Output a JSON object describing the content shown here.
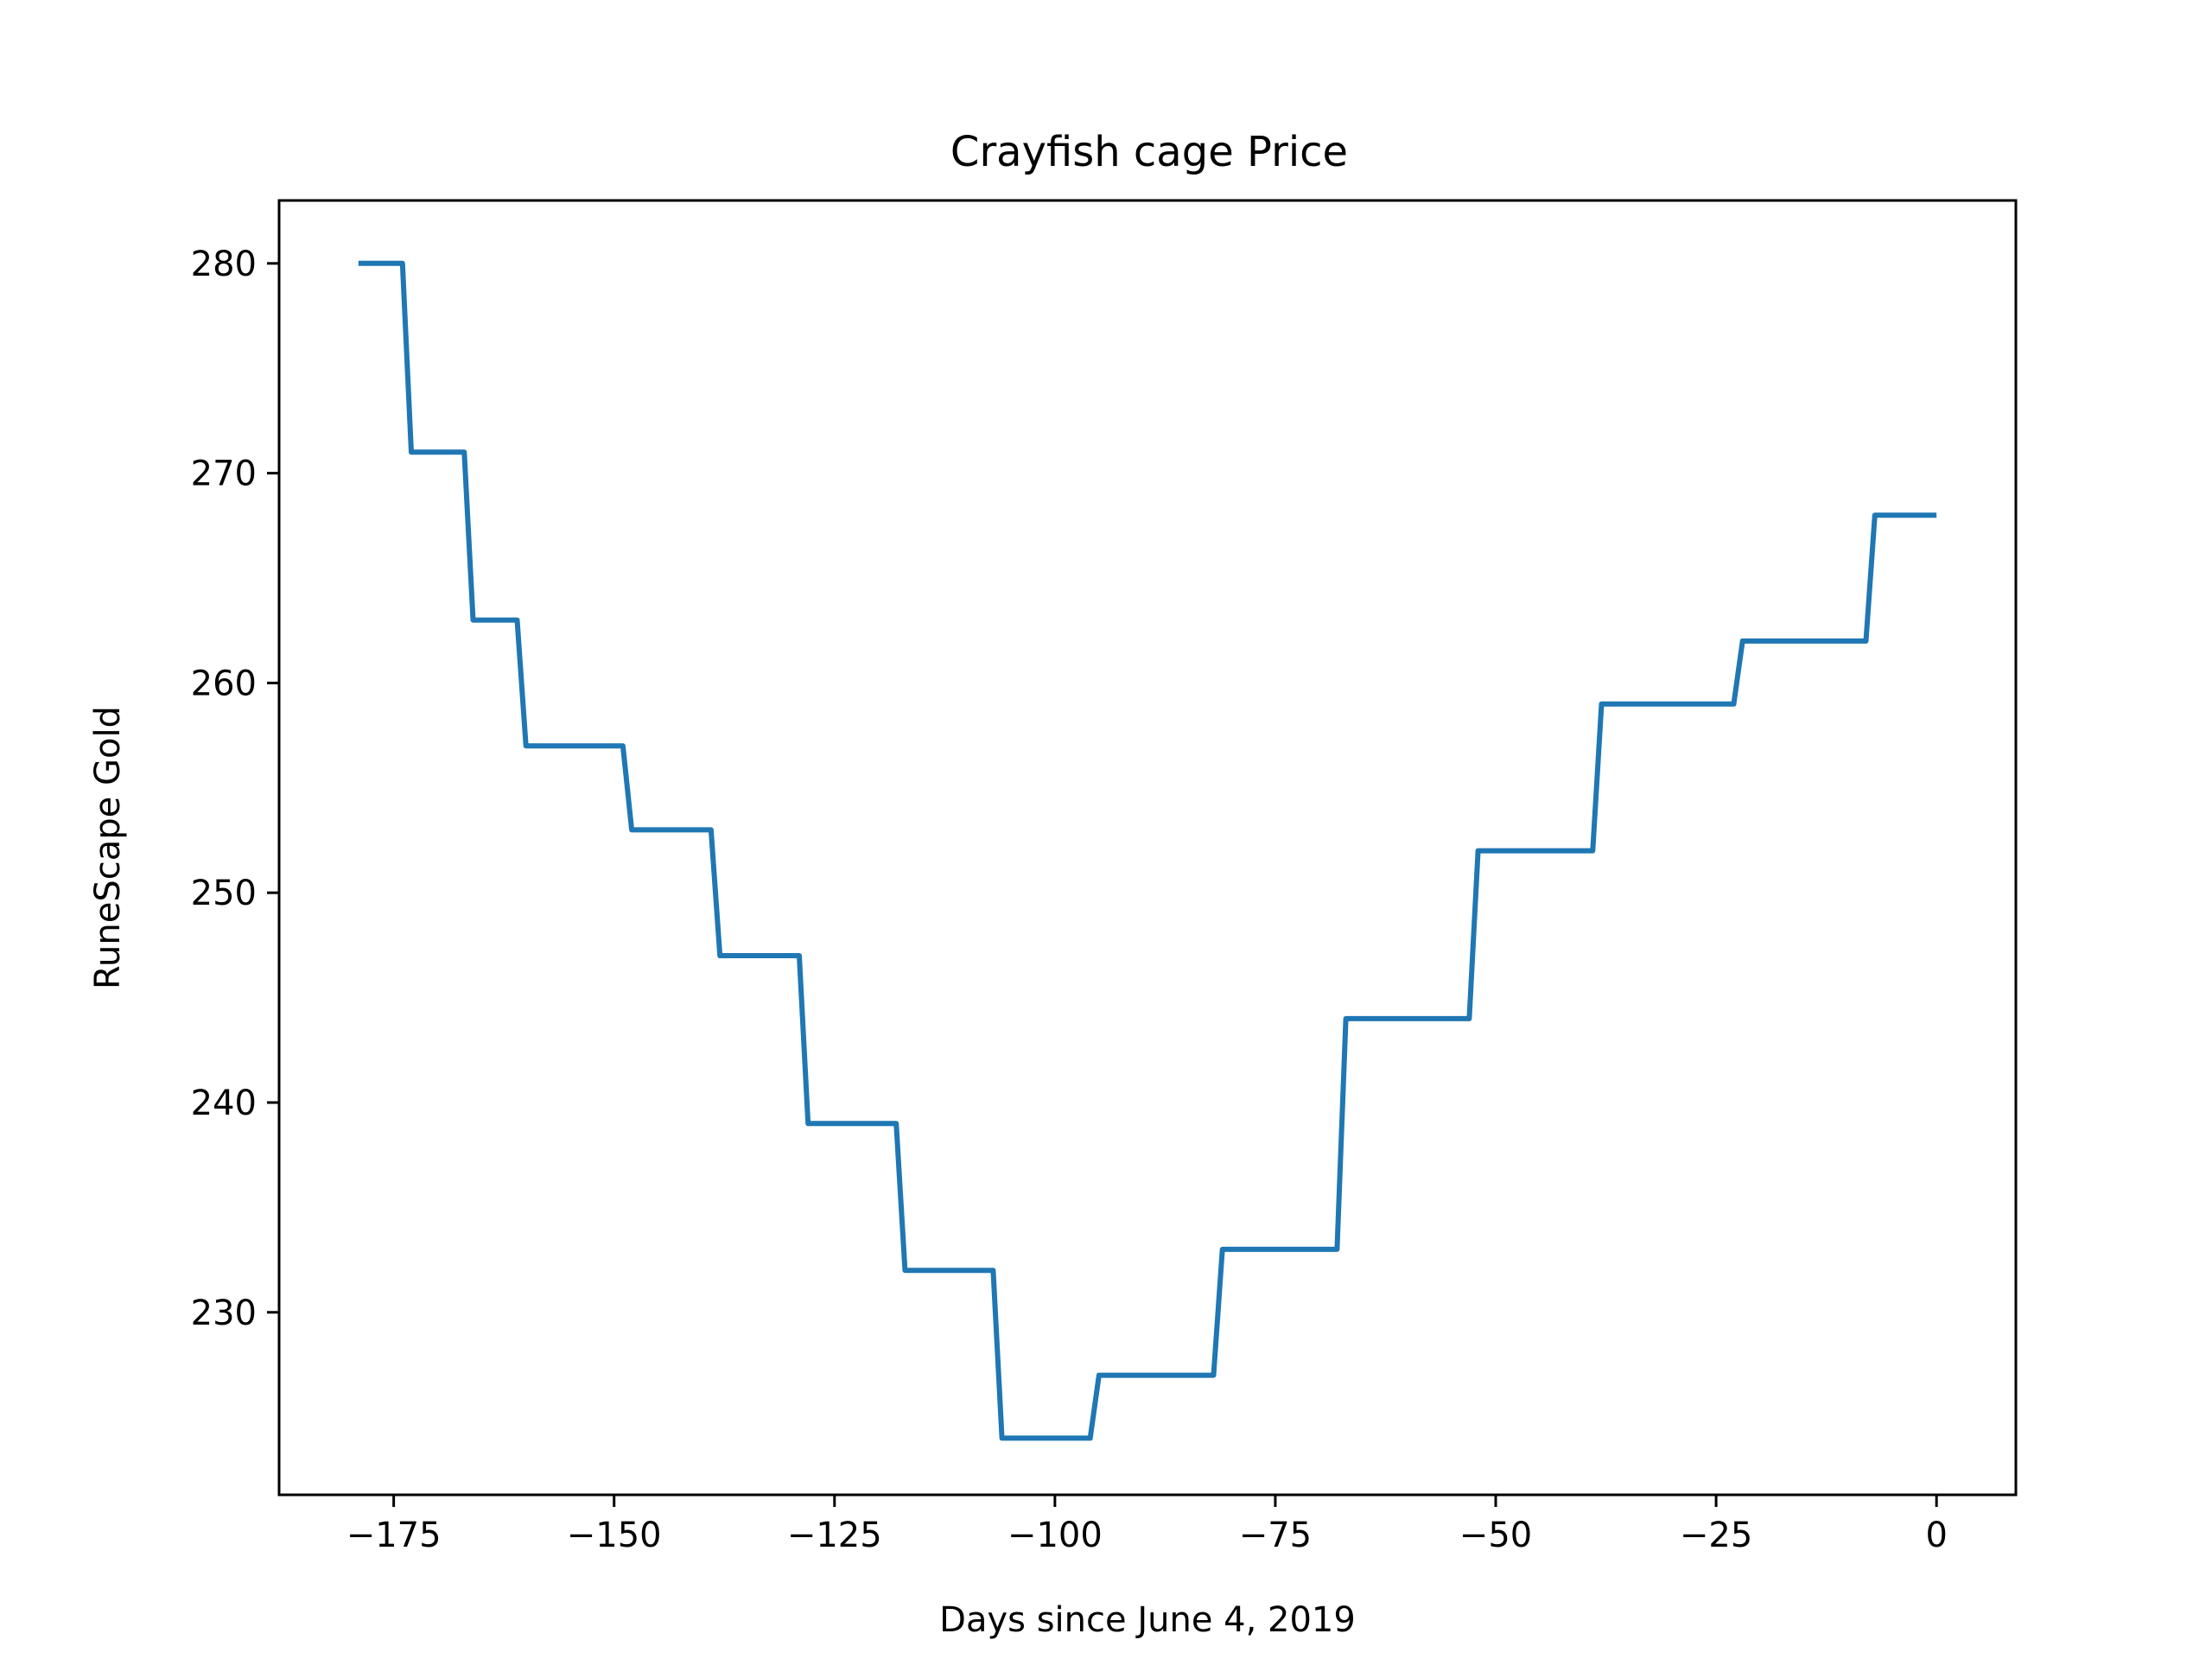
{
  "chart_data": {
    "type": "line",
    "title": "Crayfish cage Price",
    "xlabel": "Days since June 4, 2019",
    "ylabel": "RuneScape Gold",
    "xlim": [
      -188,
      9
    ],
    "ylim": [
      221.3,
      283
    ],
    "x_ticks": [
      -175,
      -150,
      -125,
      -100,
      -75,
      -50,
      -25,
      0
    ],
    "x_tick_labels": [
      "−175",
      "−150",
      "−125",
      "−100",
      "−75",
      "−50",
      "−25",
      "0"
    ],
    "y_ticks": [
      230,
      240,
      250,
      260,
      270,
      280
    ],
    "y_tick_labels": [
      "230",
      "240",
      "250",
      "260",
      "270",
      "280"
    ],
    "grid": false,
    "line_color": "#1f77b4",
    "series": [
      {
        "x": [
          -179,
          -174,
          -173,
          -167,
          -166,
          -161,
          -160,
          -149,
          -148,
          -139,
          -138,
          -129,
          -128,
          -118,
          -117,
          -107,
          -106,
          -96,
          -95,
          -82,
          -81,
          -68,
          -67,
          -53,
          -52,
          -39,
          -38,
          -23,
          -22,
          -8,
          -7,
          0
        ],
        "y": [
          280,
          280,
          271,
          271,
          263,
          263,
          257,
          257,
          253,
          253,
          247,
          247,
          239,
          239,
          232,
          232,
          224,
          224,
          227,
          227,
          233,
          233,
          244,
          244,
          252,
          252,
          259,
          259,
          262,
          262,
          268,
          268
        ]
      }
    ]
  }
}
